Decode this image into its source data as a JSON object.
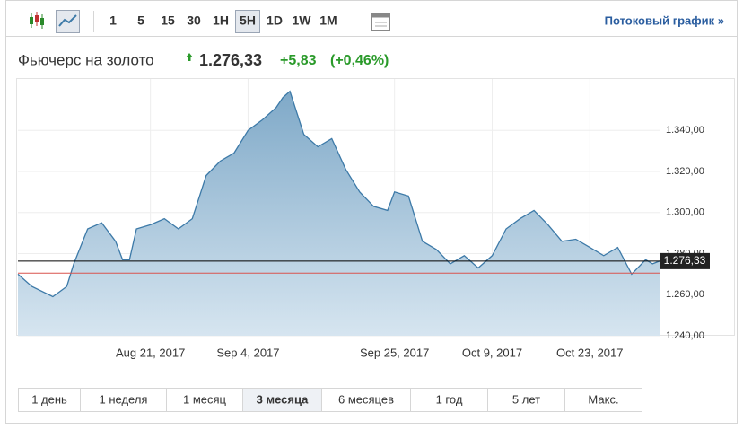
{
  "toolbar": {
    "intervals": [
      "1",
      "5",
      "15",
      "30",
      "1H",
      "5H",
      "1D",
      "1W",
      "1M"
    ],
    "selected_index": 5,
    "streaming_link": "Потоковый график »"
  },
  "header": {
    "name": "Фьючерс на золото",
    "price": "1.276,33",
    "change": "+5,83",
    "change_pct": "(+0,46%)"
  },
  "chart_data": {
    "type": "area",
    "x": [
      "Aug 2, 2017",
      "Aug 4, 2017",
      "Aug 7, 2017",
      "Aug 9, 2017",
      "Aug 10, 2017",
      "Aug 12, 2017",
      "Aug 14, 2017",
      "Aug 16, 2017",
      "Aug 17, 2017",
      "Aug 18, 2017",
      "Aug 19, 2017",
      "Aug 21, 2017",
      "Aug 23, 2017",
      "Aug 25, 2017",
      "Aug 27, 2017",
      "Aug 29, 2017",
      "Aug 31, 2017",
      "Sep 2, 2017",
      "Sep 4, 2017",
      "Sep 6, 2017",
      "Sep 8, 2017",
      "Sep 9, 2017",
      "Sep 10, 2017",
      "Sep 12, 2017",
      "Sep 14, 2017",
      "Sep 16, 2017",
      "Sep 18, 2017",
      "Sep 20, 2017",
      "Sep 22, 2017",
      "Sep 24, 2017",
      "Sep 25, 2017",
      "Sep 27, 2017",
      "Sep 29, 2017",
      "Oct 1, 2017",
      "Oct 3, 2017",
      "Oct 5, 2017",
      "Oct 7, 2017",
      "Oct 9, 2017",
      "Oct 11, 2017",
      "Oct 13, 2017",
      "Oct 15, 2017",
      "Oct 17, 2017",
      "Oct 19, 2017",
      "Oct 21, 2017",
      "Oct 23, 2017",
      "Oct 25, 2017",
      "Oct 27, 2017",
      "Oct 29, 2017",
      "Oct 31, 2017",
      "Nov 1, 2017",
      "Nov 2, 2017"
    ],
    "values": [
      1270,
      1264,
      1259,
      1264,
      1275,
      1292,
      1295,
      1286,
      1277,
      1277,
      1292,
      1294,
      1297,
      1292,
      1297,
      1318,
      1325,
      1329,
      1340,
      1345,
      1351,
      1356,
      1359,
      1338,
      1332,
      1336,
      1321,
      1310,
      1303,
      1301,
      1310,
      1308,
      1286,
      1282,
      1275,
      1279,
      1273,
      1279,
      1292,
      1297,
      1301,
      1294,
      1286,
      1287,
      1283,
      1279,
      1283,
      1270,
      1277,
      1275,
      1276.33
    ],
    "color": "#3d7aa8",
    "xlim": [
      "Aug 2, 2017",
      "Nov 2, 2017"
    ],
    "xticks": [
      "Aug 21, 2017",
      "Sep 4, 2017",
      "Sep 25, 2017",
      "Oct 9, 2017",
      "Oct 23, 2017"
    ],
    "ylim": [
      1240,
      1365
    ],
    "yticks": [
      {
        "value": 1240,
        "label": "1.240,00"
      },
      {
        "value": 1260,
        "label": "1.260,00"
      },
      {
        "value": 1280,
        "label": "1.280,00"
      },
      {
        "value": 1300,
        "label": "1.300,00"
      },
      {
        "value": 1320,
        "label": "1.320,00"
      },
      {
        "value": 1340,
        "label": "1.340,00"
      }
    ],
    "grid": true,
    "reference_lines": [
      {
        "value": 1276.33,
        "label": "1.276,33",
        "color": "#000000"
      },
      {
        "value": 1270.5,
        "color": "#d9534f"
      }
    ]
  },
  "ranges": {
    "items": [
      "1 день",
      "1 неделя",
      "1 месяц",
      "3 месяца",
      "6 месяцев",
      "1 год",
      "5 лет",
      "Макс."
    ],
    "selected_index": 3
  }
}
